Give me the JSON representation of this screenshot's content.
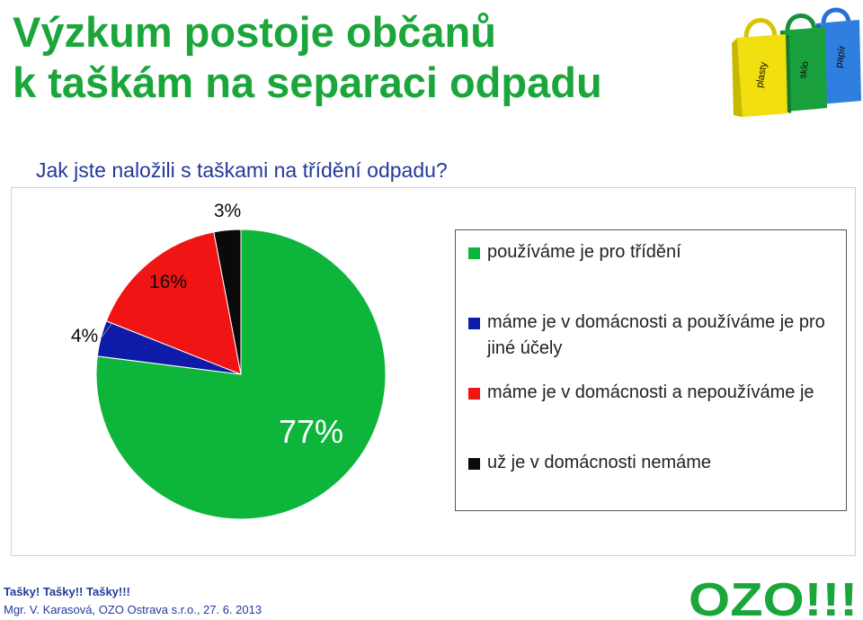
{
  "page": {
    "title_line1": "Výzkum postoje občanů",
    "title_line2": "k taškám na separaci odpadu",
    "question": "Jak jste naložili s taškami na třídění odpadu?",
    "bag_labels": [
      "plasty",
      "sklo",
      "papír"
    ],
    "footer_line1": "Tašky! Tašky!! Tašky!!!",
    "footer_line2": "Mgr. V. Karasová, OZO Ostrava s.r.o., 27. 6. 2013",
    "logo_text": "OZO!!!"
  },
  "colors": {
    "title": "#1aa63a",
    "question": "#23399a",
    "green": "#0db53a",
    "blue": "#0d1ba6",
    "red": "#f01414",
    "black": "#0a0a0a",
    "logo": "#1aa63a"
  },
  "chart_data": {
    "type": "pie",
    "title": "",
    "legend_position": "right",
    "slices": [
      {
        "name": "používáme je pro třídění",
        "value": 77,
        "label": "77%",
        "color": "#0db53a"
      },
      {
        "name": "máme je v domácnosti a používáme je pro jiné účely",
        "value": 4,
        "label": "4%",
        "color": "#0d1ba6"
      },
      {
        "name": "máme je v domácnosti a nepoužíváme je",
        "value": 16,
        "label": "16%",
        "color": "#f01414"
      },
      {
        "name": "už je v domácnosti nemáme",
        "value": 3,
        "label": "3%",
        "color": "#0a0a0a"
      }
    ]
  }
}
